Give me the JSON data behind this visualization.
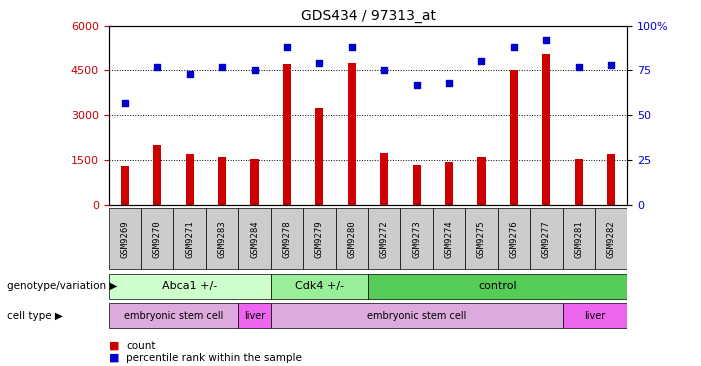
{
  "title": "GDS434 / 97313_at",
  "samples": [
    "GSM9269",
    "GSM9270",
    "GSM9271",
    "GSM9283",
    "GSM9284",
    "GSM9278",
    "GSM9279",
    "GSM9280",
    "GSM9272",
    "GSM9273",
    "GSM9274",
    "GSM9275",
    "GSM9276",
    "GSM9277",
    "GSM9281",
    "GSM9282"
  ],
  "counts": [
    1300,
    2000,
    1700,
    1600,
    1550,
    4700,
    3250,
    4750,
    1750,
    1350,
    1450,
    1600,
    4500,
    5050,
    1550,
    1700
  ],
  "percentiles": [
    57,
    77,
    73,
    77,
    75,
    88,
    79,
    88,
    75,
    67,
    68,
    80,
    88,
    92,
    77,
    78
  ],
  "bar_color": "#cc0000",
  "dot_color": "#0000cc",
  "ylim_left": [
    0,
    6000
  ],
  "ylim_right": [
    0,
    100
  ],
  "yticks_left": [
    0,
    1500,
    3000,
    4500,
    6000
  ],
  "yticks_right": [
    0,
    25,
    50,
    75,
    100
  ],
  "hlines": [
    1500,
    3000,
    4500
  ],
  "genotype_groups": [
    {
      "label": "Abca1 +/-",
      "start": 0,
      "end": 5,
      "color": "#ccffcc"
    },
    {
      "label": "Cdk4 +/-",
      "start": 5,
      "end": 8,
      "color": "#99ee99"
    },
    {
      "label": "control",
      "start": 8,
      "end": 16,
      "color": "#55cc55"
    }
  ],
  "celltype_groups": [
    {
      "label": "embryonic stem cell",
      "start": 0,
      "end": 4,
      "color": "#ddaadd"
    },
    {
      "label": "liver",
      "start": 4,
      "end": 5,
      "color": "#ee66ee"
    },
    {
      "label": "embryonic stem cell",
      "start": 5,
      "end": 14,
      "color": "#ddaadd"
    },
    {
      "label": "liver",
      "start": 14,
      "end": 16,
      "color": "#ee66ee"
    }
  ],
  "legend_count_label": "count",
  "legend_pct_label": "percentile rank within the sample",
  "genotype_label": "genotype/variation",
  "celltype_label": "cell type"
}
